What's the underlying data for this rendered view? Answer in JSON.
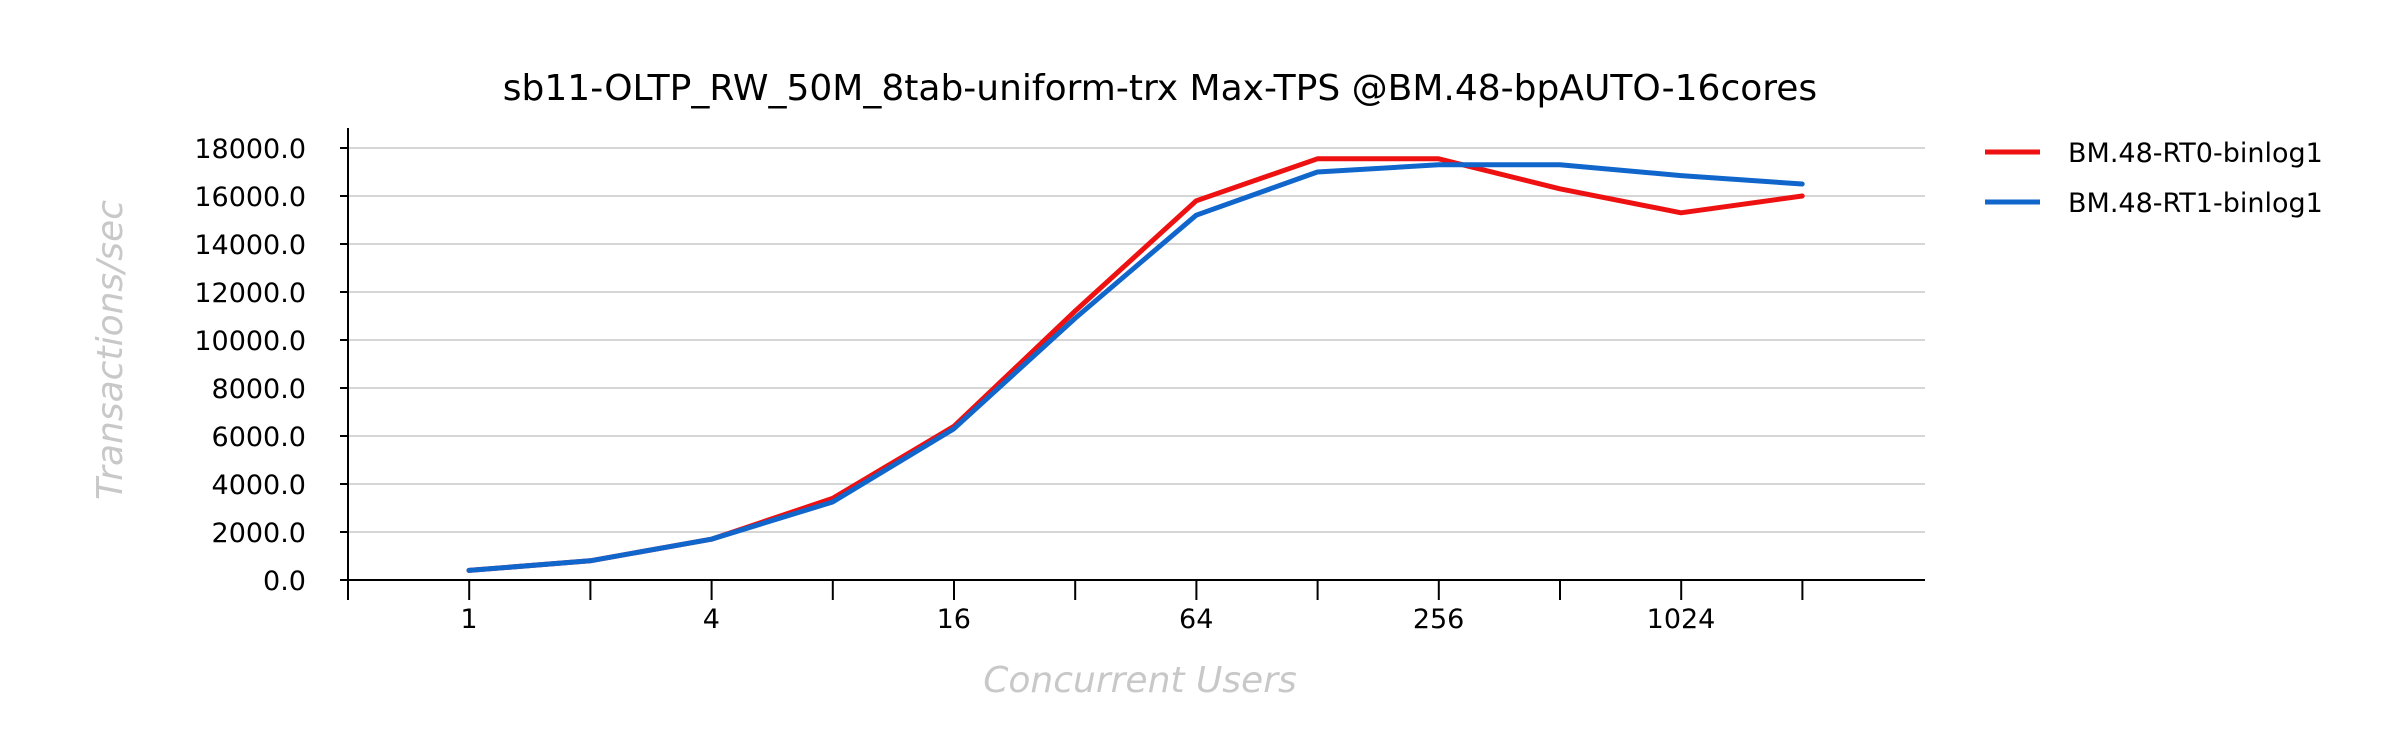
{
  "chart_data": {
    "type": "line",
    "title": "sb11-OLTP_RW_50M_8tab-uniform-trx Max-TPS @BM.48-bpAUTO-16cores",
    "xlabel": "Concurrent Users",
    "ylabel": "Transactions/sec",
    "x_scale": "log2",
    "x": [
      1,
      2,
      4,
      8,
      16,
      32,
      64,
      128,
      256,
      512,
      1024,
      2048
    ],
    "x_tick_labels": [
      "1",
      "4",
      "16",
      "64",
      "256",
      "1024"
    ],
    "y_ticks": [
      "0.0",
      "2000.0",
      "4000.0",
      "6000.0",
      "8000.0",
      "10000.0",
      "12000.0",
      "14000.0",
      "16000.0",
      "18000.0"
    ],
    "ylim": [
      0,
      18000
    ],
    "grid": "horizontal",
    "legend_position": "right",
    "series": [
      {
        "name": "BM.48-RT0-binlog1",
        "color": "#ee1111",
        "values": [
          400,
          800,
          1700,
          3400,
          6400,
          11200,
          15800,
          17550,
          17550,
          16300,
          15300,
          16000
        ]
      },
      {
        "name": "BM.48-RT1-binlog1",
        "color": "#1166cc",
        "values": [
          400,
          800,
          1700,
          3250,
          6300,
          10900,
          15200,
          17000,
          17300,
          17300,
          16850,
          16500
        ]
      }
    ]
  }
}
